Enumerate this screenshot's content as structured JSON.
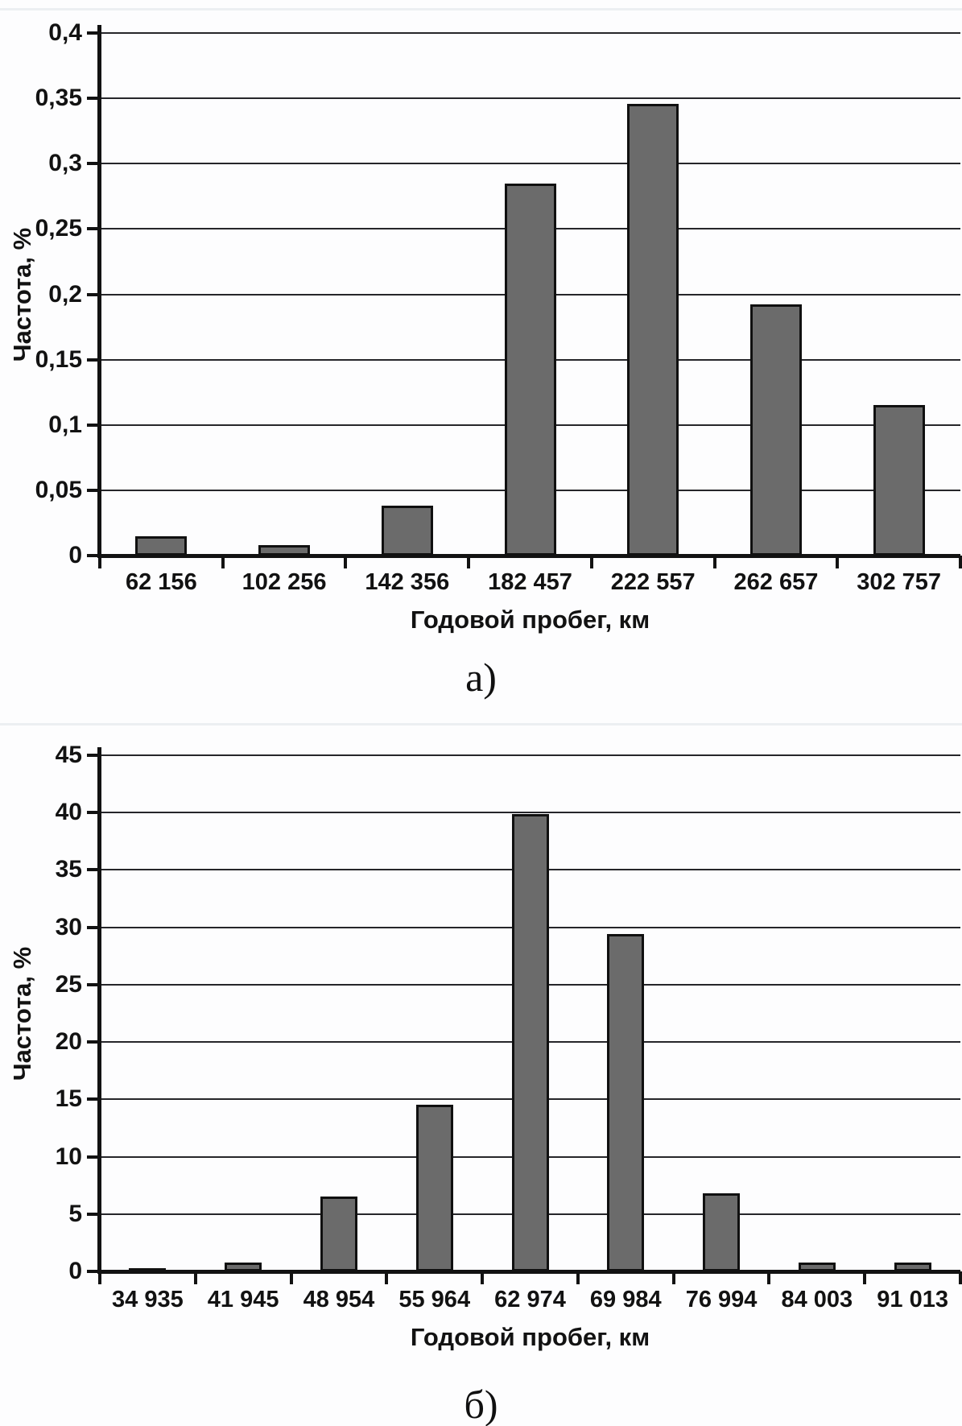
{
  "page": {
    "background": "#fdfdfe",
    "description": "Two stacked frequency histograms of annual mileage"
  },
  "colors": {
    "bar_fill": "#6b6b6b",
    "bar_border": "#101010",
    "gridline": "#26262a",
    "axis": "#121212",
    "text": "#121212"
  },
  "chart_data": [
    {
      "type": "bar",
      "caption": "а)",
      "title": "",
      "xlabel": "Годовой пробег, км",
      "ylabel": "Частота, %",
      "categories": [
        "62 156",
        "102 256",
        "142 356",
        "182 457",
        "222 557",
        "262 657",
        "302 757"
      ],
      "values": [
        0.015,
        0.008,
        0.038,
        0.285,
        0.346,
        0.192,
        0.115
      ],
      "ylim": [
        0,
        0.4
      ],
      "ytick_step": 0.05,
      "ytick_labels": [
        "0",
        "0,05",
        "0,1",
        "0,15",
        "0,2",
        "0,25",
        "0,3",
        "0,35",
        "0,4"
      ],
      "grid": true,
      "legend": "none"
    },
    {
      "type": "bar",
      "caption": "б)",
      "title": "",
      "xlabel": "Годовой пробег, км",
      "ylabel": "Частота, %",
      "categories": [
        "34 935",
        "41 945",
        "48 954",
        "55 964",
        "62 974",
        "69 984",
        "76 994",
        "84 003",
        "91 013"
      ],
      "values": [
        0.3,
        0.8,
        6.5,
        14.5,
        39.9,
        29.4,
        6.8,
        0.8,
        0.8
      ],
      "ylim": [
        0,
        45
      ],
      "ytick_step": 5,
      "ytick_labels": [
        "0",
        "5",
        "10",
        "15",
        "20",
        "25",
        "30",
        "35",
        "40",
        "45"
      ],
      "grid": true,
      "legend": "none"
    }
  ]
}
